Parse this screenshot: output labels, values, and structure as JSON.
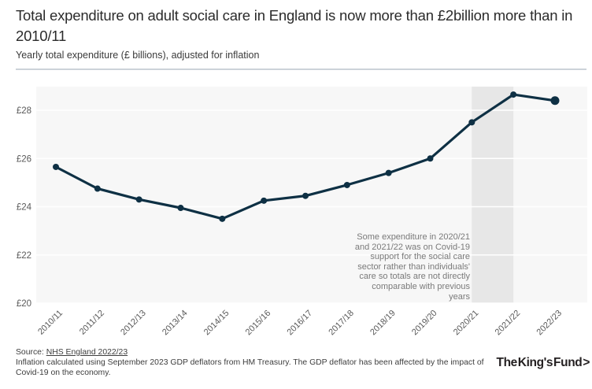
{
  "header": {
    "title": "Total expenditure on adult social care in England is now more than £2billion more than in 2010/11",
    "subtitle": "Yearly total expenditure (£ billions), adjusted for inflation"
  },
  "chart_data": {
    "type": "line",
    "title": "Yearly total expenditure (£ billions), adjusted for inflation",
    "categories": [
      "2010/11",
      "2011/12",
      "2012/13",
      "2013/14",
      "2014/15",
      "2015/16",
      "2016/17",
      "2017/18",
      "2018/19",
      "2019/20",
      "2020/21",
      "2021/22",
      "2022/23"
    ],
    "series": [
      {
        "name": "Total expenditure (£ billions, adjusted for inflation)",
        "values": [
          25.65,
          24.75,
          24.3,
          23.95,
          23.5,
          24.25,
          24.45,
          24.9,
          25.4,
          26.0,
          27.5,
          28.65,
          28.4
        ]
      }
    ],
    "ylim": [
      20,
      29
    ],
    "yticks": [
      20,
      22,
      24,
      26,
      28
    ],
    "ytick_labels": [
      "£20",
      "£22",
      "£24",
      "£26",
      "£28"
    ],
    "grid": "horizontal white gridlines on light grey plot background",
    "legend": "none",
    "highlight_band": {
      "from": "2020/21",
      "to": "2021/22",
      "color": "#e7e7e7"
    },
    "annotation_lines": [
      "Some expenditure in 2020/21",
      "and 2021/22 was on Covid-19",
      "support for the social care",
      "sector rather than individuals'",
      "care so totals are not directly",
      "comparable with previous",
      "years"
    ],
    "colors": {
      "line": "#0e3044",
      "plot_bg": "#f7f7f7",
      "gridline": "#ffffff",
      "tick_label": "#595959",
      "annotation": "#7a7a7a"
    },
    "last_point_emphasized": true
  },
  "footer": {
    "source_label": "Source: ",
    "source_link_text": "NHS England 2022/23",
    "note_lines": [
      "Inflation calculated using September 2023 GDP deflators from HM Treasury. The GDP deflator has been affected by the impact of",
      "Covid-19 on the economy."
    ],
    "logo_text": "The King's Fund",
    "logo_mark": ">"
  }
}
